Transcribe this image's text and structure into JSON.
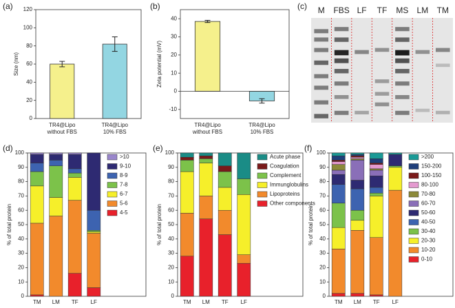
{
  "chart_data": [
    {
      "type": "bar",
      "panel_label": "(a)",
      "ylabel": "Size (nm)",
      "categories": [
        [
          "TR4@Lipo",
          "without FBS"
        ],
        [
          "TR4@Lipo",
          "10% FBS"
        ]
      ],
      "values": [
        60,
        82
      ],
      "errors": [
        3,
        8
      ],
      "colors": [
        "#f5f08c",
        "#93d6e2"
      ],
      "ylim": [
        0,
        120
      ],
      "yticks": [
        0,
        20,
        40,
        60,
        80,
        100,
        120
      ]
    },
    {
      "type": "bar",
      "panel_label": "(b)",
      "ylabel": "Zeta potential (mV)",
      "categories": [
        [
          "TR4@Lipo",
          "without FBS"
        ],
        [
          "TR4@Lipo",
          "10% FBS"
        ]
      ],
      "values": [
        38.5,
        -5.3
      ],
      "errors": [
        0.6,
        1.2
      ],
      "colors": [
        "#f5f08c",
        "#93d6e2"
      ],
      "ylim": [
        -15,
        45
      ],
      "yticks": [
        -10,
        0,
        10,
        20,
        30,
        40
      ]
    },
    {
      "type": "stacked_bar",
      "panel_label": "(d)",
      "ylabel": "% of total protein",
      "categories": [
        "TM",
        "LM",
        "TF",
        "LF"
      ],
      "ylim": [
        0,
        100
      ],
      "yticks": [
        0,
        10,
        20,
        30,
        40,
        50,
        60,
        70,
        80,
        90,
        100
      ],
      "legend": "upper right",
      "series": [
        {
          "name": "4-5",
          "color": "#e8212b",
          "values": [
            1,
            0,
            16,
            6
          ]
        },
        {
          "name": "5-6",
          "color": "#f28a2c",
          "values": [
            50,
            56,
            51,
            38
          ]
        },
        {
          "name": "6-7",
          "color": "#f6ef2a",
          "values": [
            26,
            13,
            16,
            1
          ]
        },
        {
          "name": "7-8",
          "color": "#7cc24a",
          "values": [
            10,
            22,
            3,
            1
          ]
        },
        {
          "name": "8-9",
          "color": "#3d63b0",
          "values": [
            6,
            4,
            3,
            14
          ]
        },
        {
          "name": "9-10",
          "color": "#2e2a72",
          "values": [
            6,
            4,
            10,
            40
          ]
        },
        {
          "name": ">10",
          "color": "#9a87cc",
          "values": [
            1,
            1,
            1,
            0
          ]
        }
      ]
    },
    {
      "type": "stacked_bar",
      "panel_label": "(e)",
      "ylabel": "% of total protein",
      "categories": [
        "TM",
        "LM",
        "TF",
        "LF"
      ],
      "ylim": [
        0,
        100
      ],
      "yticks": [
        0,
        10,
        20,
        30,
        40,
        50,
        60,
        70,
        80,
        90,
        100
      ],
      "legend": "upper right",
      "series": [
        {
          "name": "Other components",
          "color": "#e8212b",
          "values": [
            28,
            54,
            43,
            23
          ]
        },
        {
          "name": "Lipoproteins",
          "color": "#f28a2c",
          "values": [
            30,
            16,
            17,
            6
          ]
        },
        {
          "name": "Immunglobulins",
          "color": "#f6ef2a",
          "values": [
            29,
            23,
            16,
            42
          ]
        },
        {
          "name": "Complement",
          "color": "#7cc24a",
          "values": [
            8,
            3,
            11,
            11
          ]
        },
        {
          "name": "Coagulation",
          "color": "#7a1a1a",
          "values": [
            2,
            2,
            4,
            0
          ]
        },
        {
          "name": "Acute phase",
          "color": "#1a8c86",
          "values": [
            3,
            2,
            9,
            18
          ]
        }
      ]
    },
    {
      "type": "stacked_bar",
      "panel_label": "(f)",
      "ylabel": "% of total protein",
      "categories": [
        "TM",
        "LM",
        "TF",
        "LF"
      ],
      "ylim": [
        0,
        100
      ],
      "yticks": [
        0,
        10,
        20,
        30,
        40,
        50,
        60,
        70,
        80,
        90,
        100
      ],
      "legend": "upper right",
      "series": [
        {
          "name": "0-10",
          "color": "#e8212b",
          "values": [
            2,
            2,
            1,
            0
          ]
        },
        {
          "name": "10-20",
          "color": "#f28a2c",
          "values": [
            31,
            44,
            40,
            74
          ]
        },
        {
          "name": "20-30",
          "color": "#f6ef2a",
          "values": [
            15,
            7,
            29,
            16
          ]
        },
        {
          "name": "30-40",
          "color": "#7cc24a",
          "values": [
            17,
            7,
            2,
            1
          ]
        },
        {
          "name": "40-50",
          "color": "#3d63b0",
          "values": [
            13,
            15,
            4,
            0
          ]
        },
        {
          "name": "50-60",
          "color": "#2e2a72",
          "values": [
            7,
            6,
            8,
            8
          ]
        },
        {
          "name": "60-70",
          "color": "#8a6fb8",
          "values": [
            3,
            14,
            4,
            0
          ]
        },
        {
          "name": "70-80",
          "color": "#8c8a3a",
          "values": [
            4,
            1,
            1,
            0
          ]
        },
        {
          "name": "80-100",
          "color": "#e59ad0",
          "values": [
            2,
            1,
            3,
            0
          ]
        },
        {
          "name": "100-150",
          "color": "#7a1a1a",
          "values": [
            1,
            1,
            1,
            0
          ]
        },
        {
          "name": "150-200",
          "color": "#1f3f7a",
          "values": [
            3,
            1,
            3,
            0
          ]
        },
        {
          "name": ">200",
          "color": "#1a9a96",
          "values": [
            2,
            1,
            4,
            1
          ]
        }
      ]
    }
  ],
  "gel": {
    "panel_label": "(c)",
    "lanes": [
      "M",
      "FBS",
      "LF",
      "TF",
      "MS",
      "LM",
      "TM"
    ]
  }
}
